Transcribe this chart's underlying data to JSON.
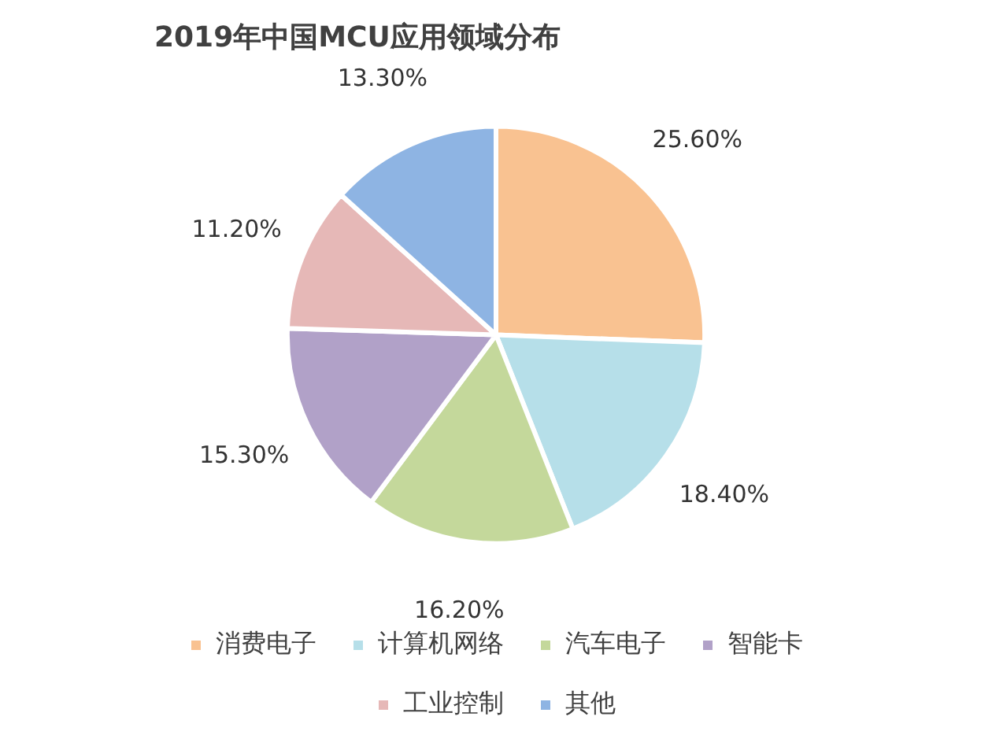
{
  "chart_data": {
    "type": "pie",
    "title": "2019年中国MCU应用领域分布",
    "categories": [
      "消费电子",
      "计算机网络",
      "汽车电子",
      "智能卡",
      "工业控制",
      "其他"
    ],
    "values": [
      25.6,
      18.4,
      16.2,
      15.3,
      11.2,
      13.3
    ],
    "colors": [
      "#f9c291",
      "#b6dfe9",
      "#c4d89b",
      "#b1a1c8",
      "#e6b8b7",
      "#8eb4e3"
    ],
    "value_labels": [
      "25.60%",
      "18.40%",
      "16.20%",
      "15.30%",
      "11.20%",
      "13.30%"
    ],
    "legend": "bottom"
  }
}
